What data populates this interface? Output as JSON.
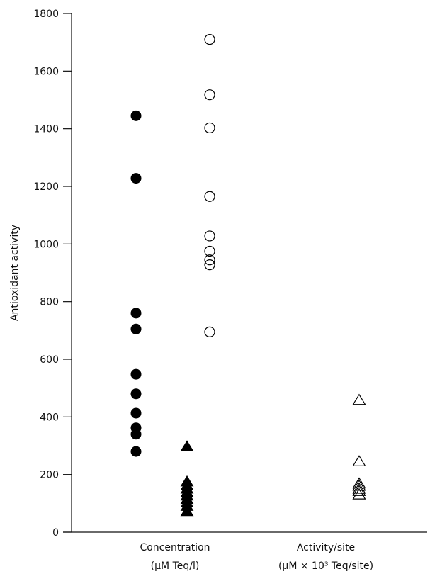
{
  "chart_data": {
    "type": "scatter",
    "ylabel": "Antioxidant activity",
    "ylim": [
      0,
      1800
    ],
    "yticks": [
      0,
      200,
      400,
      600,
      800,
      1000,
      1200,
      1400,
      1600,
      1800
    ],
    "yticks_text": [
      "0",
      "200",
      "400",
      "600",
      "800",
      "1000",
      "1200",
      "1400",
      "1600",
      "1800"
    ],
    "category_labels": [
      {
        "line1": "Concentration",
        "line2": "(µM Teq/l)"
      },
      {
        "line1": "Activity/site",
        "line2": "(µM × 10³ Teq/site)"
      }
    ],
    "grid": false,
    "series": [
      {
        "group": "concentration",
        "marker": "filled-circle",
        "values": [
          1445,
          1228,
          760,
          705,
          548,
          480,
          413,
          362,
          340,
          280
        ]
      },
      {
        "group": "concentration",
        "marker": "open-circle",
        "values": [
          1710,
          1518,
          1403,
          1165,
          1028,
          975,
          945,
          928,
          695
        ]
      },
      {
        "group": "activity_per_site",
        "marker": "filled-triangle",
        "values": [
          297,
          175,
          162,
          150,
          138,
          126,
          114,
          102,
          90,
          72
        ]
      },
      {
        "group": "activity_per_site",
        "marker": "open-triangle",
        "values": [
          458,
          245,
          168,
          160,
          150,
          142,
          130
        ]
      }
    ],
    "colors": {
      "ink": "#000000",
      "background": "#ffffff"
    }
  }
}
